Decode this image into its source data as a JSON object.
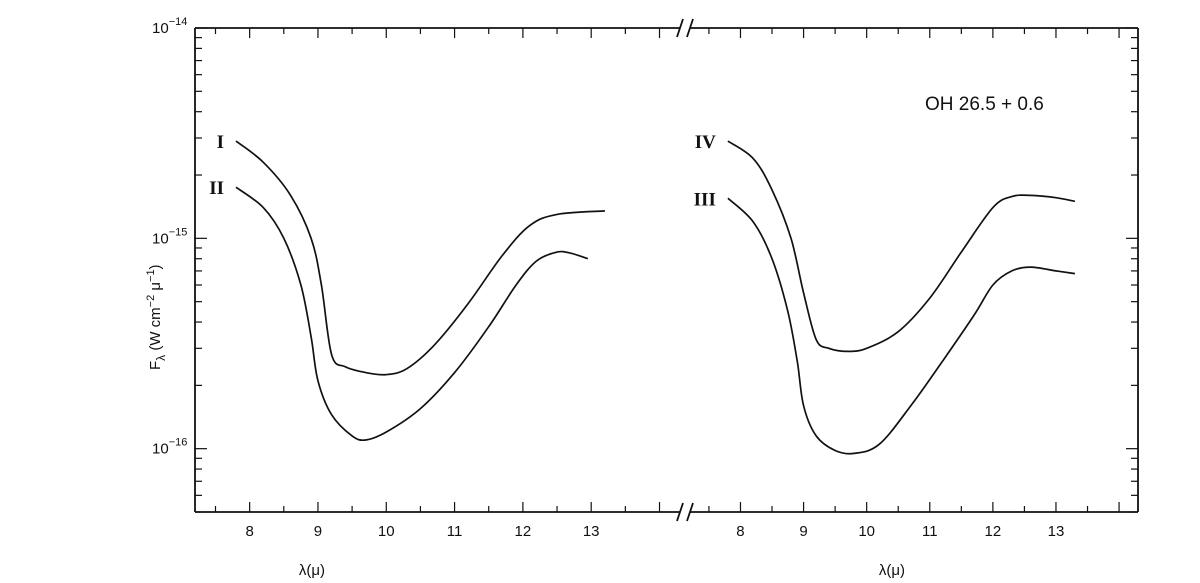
{
  "chart_data": {
    "type": "line",
    "title": "OH 26.5 + 0.6",
    "ylabel": {
      "main": "F",
      "sub": "λ",
      "unit_a": " (W cm",
      "exp_a": "−2",
      "unit_b": " μ",
      "exp_b": "−1",
      "unit_c": ")"
    },
    "yscale": "log",
    "ylim": [
      5e-17,
      1e-14
    ],
    "y_ticks": [
      {
        "value": 1e-14,
        "base": "10",
        "exp": "−14"
      },
      {
        "value": 1e-15,
        "base": "10",
        "exp": "−15"
      },
      {
        "value": 1e-16,
        "base": "10",
        "exp": "−16"
      }
    ],
    "grid": false,
    "panels": [
      {
        "xlabel": "λ(μ)",
        "xlim": [
          7.2,
          14.3
        ],
        "x_ticks": [
          "8",
          "9",
          "10",
          "11",
          "12",
          "13"
        ],
        "series": [
          {
            "name": "I",
            "x": [
              7.8,
              8.2,
              8.6,
              8.9,
              9.05,
              9.2,
              9.4,
              9.7,
              10.0,
              10.3,
              10.7,
              11.2,
              11.7,
              12.1,
              12.5,
              13.2
            ],
            "y": [
              2.9e-15,
              2.3e-15,
              1.6e-15,
              1e-15,
              6e-16,
              2.8e-16,
              2.45e-16,
              2.3e-16,
              2.25e-16,
              2.4e-16,
              3.1e-16,
              4.9e-16,
              8.3e-16,
              1.15e-15,
              1.3e-15,
              1.35e-15
            ]
          },
          {
            "name": "II",
            "x": [
              7.8,
              8.2,
              8.5,
              8.75,
              8.9,
              9.0,
              9.2,
              9.5,
              9.7,
              10.0,
              10.5,
              11.0,
              11.5,
              11.9,
              12.2,
              12.5,
              12.7,
              12.95
            ],
            "y": [
              1.75e-15,
              1.4e-15,
              1e-15,
              6e-16,
              3.4e-16,
              2.1e-16,
              1.45e-16,
              1.15e-16,
              1.1e-16,
              1.2e-16,
              1.55e-16,
              2.3e-16,
              3.8e-16,
              6e-16,
              7.8e-16,
              8.6e-16,
              8.5e-16,
              8e-16
            ]
          }
        ]
      },
      {
        "xlabel": "λ(μ)",
        "xlim": [
          7.2,
          14.3
        ],
        "x_ticks": [
          "8",
          "9",
          "10",
          "11",
          "12",
          "13"
        ],
        "series": [
          {
            "name": "IV",
            "x": [
              7.8,
              8.2,
              8.5,
              8.8,
              9.0,
              9.2,
              9.4,
              9.7,
              10.0,
              10.5,
              11.0,
              11.5,
              12.0,
              12.3,
              12.6,
              13.0,
              13.3
            ],
            "y": [
              2.9e-15,
              2.4e-15,
              1.7e-15,
              1e-15,
              5.5e-16,
              3.3e-16,
              3e-16,
              2.9e-16,
              3e-16,
              3.6e-16,
              5.2e-16,
              8.6e-16,
              1.4e-15,
              1.58e-15,
              1.6e-15,
              1.56e-15,
              1.5e-15
            ]
          },
          {
            "name": "III",
            "x": [
              7.8,
              8.2,
              8.5,
              8.75,
              8.9,
              9.0,
              9.2,
              9.5,
              9.8,
              10.2,
              10.7,
              11.2,
              11.7,
              12.0,
              12.3,
              12.6,
              13.0,
              13.3
            ],
            "y": [
              1.55e-15,
              1.2e-15,
              8e-16,
              4.5e-16,
              2.6e-16,
              1.6e-16,
              1.15e-16,
              9.8e-17,
              9.5e-17,
              1.05e-16,
              1.6e-16,
              2.6e-16,
              4.3e-16,
              6e-16,
              7e-16,
              7.3e-16,
              7e-16,
              6.8e-16
            ]
          }
        ]
      }
    ]
  }
}
